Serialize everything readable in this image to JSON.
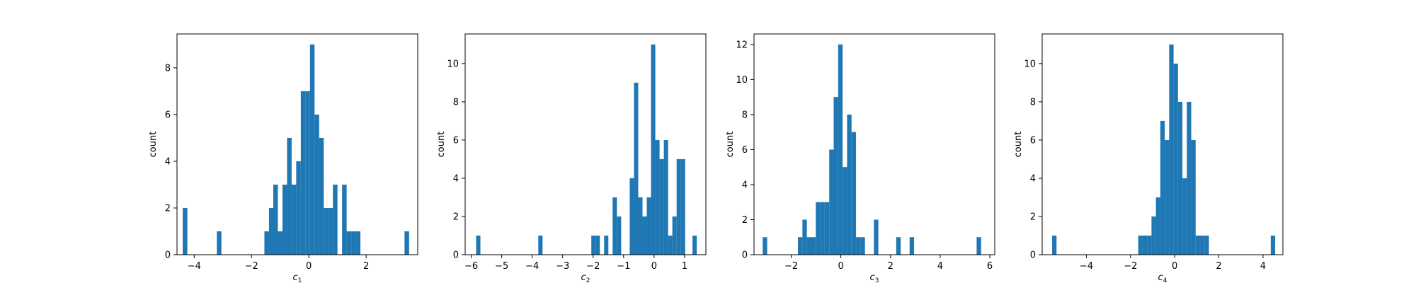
{
  "chart_data": [
    {
      "type": "histogram",
      "xlabel": "c",
      "xlabel_subscript": "1",
      "ylabel": "count",
      "xlim": [
        -4.6,
        3.8
      ],
      "ylim": [
        0,
        9.45
      ],
      "xticks": [
        -4,
        -2,
        0,
        2
      ],
      "yticks": [
        0,
        2,
        4,
        6,
        8
      ],
      "grid": false,
      "color": "#1f77b4",
      "bins": [
        {
          "x0": -4.4,
          "x1": -4.24,
          "count": 2
        },
        {
          "x0": -3.21,
          "x1": -3.05,
          "count": 1
        },
        {
          "x0": -1.55,
          "x1": -1.39,
          "count": 1
        },
        {
          "x0": -1.39,
          "x1": -1.24,
          "count": 2
        },
        {
          "x0": -1.24,
          "x1": -1.08,
          "count": 3
        },
        {
          "x0": -1.08,
          "x1": -0.92,
          "count": 1
        },
        {
          "x0": -0.92,
          "x1": -0.76,
          "count": 3
        },
        {
          "x0": -0.76,
          "x1": -0.6,
          "count": 5
        },
        {
          "x0": -0.6,
          "x1": -0.44,
          "count": 3
        },
        {
          "x0": -0.44,
          "x1": -0.28,
          "count": 4
        },
        {
          "x0": -0.28,
          "x1": -0.12,
          "count": 7
        },
        {
          "x0": -0.12,
          "x1": 0.04,
          "count": 7
        },
        {
          "x0": 0.04,
          "x1": 0.2,
          "count": 9
        },
        {
          "x0": 0.2,
          "x1": 0.36,
          "count": 6
        },
        {
          "x0": 0.36,
          "x1": 0.52,
          "count": 5
        },
        {
          "x0": 0.52,
          "x1": 0.68,
          "count": 2
        },
        {
          "x0": 0.68,
          "x1": 0.84,
          "count": 2
        },
        {
          "x0": 0.84,
          "x1": 1.0,
          "count": 3
        },
        {
          "x0": 1.16,
          "x1": 1.32,
          "count": 3
        },
        {
          "x0": 1.32,
          "x1": 1.48,
          "count": 1
        },
        {
          "x0": 1.48,
          "x1": 1.64,
          "count": 1
        },
        {
          "x0": 1.64,
          "x1": 1.8,
          "count": 1
        },
        {
          "x0": 3.34,
          "x1": 3.5,
          "count": 1
        }
      ]
    },
    {
      "type": "histogram",
      "xlabel": "c",
      "xlabel_subscript": "2",
      "ylabel": "count",
      "xlim": [
        -6.2,
        1.7
      ],
      "ylim": [
        0,
        11.55
      ],
      "xticks": [
        -6,
        -5,
        -4,
        -3,
        -2,
        -1,
        0,
        1
      ],
      "yticks": [
        0,
        2,
        4,
        6,
        8,
        10
      ],
      "grid": false,
      "color": "#1f77b4",
      "bins": [
        {
          "x0": -5.84,
          "x1": -5.7,
          "count": 1
        },
        {
          "x0": -3.8,
          "x1": -3.66,
          "count": 1
        },
        {
          "x0": -2.06,
          "x1": -1.92,
          "count": 1
        },
        {
          "x0": -1.92,
          "x1": -1.78,
          "count": 1
        },
        {
          "x0": -1.64,
          "x1": -1.5,
          "count": 1
        },
        {
          "x0": -1.36,
          "x1": -1.22,
          "count": 3
        },
        {
          "x0": -1.22,
          "x1": -1.08,
          "count": 2
        },
        {
          "x0": -0.8,
          "x1": -0.66,
          "count": 4
        },
        {
          "x0": -0.66,
          "x1": -0.52,
          "count": 9
        },
        {
          "x0": -0.52,
          "x1": -0.38,
          "count": 3
        },
        {
          "x0": -0.38,
          "x1": -0.24,
          "count": 2
        },
        {
          "x0": -0.24,
          "x1": -0.1,
          "count": 3
        },
        {
          "x0": -0.1,
          "x1": 0.04,
          "count": 11
        },
        {
          "x0": 0.04,
          "x1": 0.18,
          "count": 6
        },
        {
          "x0": 0.18,
          "x1": 0.32,
          "count": 5
        },
        {
          "x0": 0.32,
          "x1": 0.46,
          "count": 6
        },
        {
          "x0": 0.46,
          "x1": 0.6,
          "count": 1
        },
        {
          "x0": 0.6,
          "x1": 0.74,
          "count": 2
        },
        {
          "x0": 0.74,
          "x1": 0.88,
          "count": 5
        },
        {
          "x0": 0.88,
          "x1": 1.02,
          "count": 5
        },
        {
          "x0": 1.26,
          "x1": 1.4,
          "count": 1
        }
      ]
    },
    {
      "type": "histogram",
      "xlabel": "c",
      "xlabel_subscript": "3",
      "ylabel": "count",
      "xlim": [
        -3.5,
        6.2
      ],
      "ylim": [
        0,
        12.6
      ],
      "xticks": [
        -2,
        0,
        2,
        4,
        6
      ],
      "yticks": [
        0,
        2,
        4,
        6,
        8,
        10,
        12
      ],
      "grid": false,
      "color": "#1f77b4",
      "bins": [
        {
          "x0": -3.15,
          "x1": -2.97,
          "count": 1
        },
        {
          "x0": -1.73,
          "x1": -1.55,
          "count": 1
        },
        {
          "x0": -1.55,
          "x1": -1.37,
          "count": 2
        },
        {
          "x0": -1.37,
          "x1": -1.19,
          "count": 1
        },
        {
          "x0": -1.19,
          "x1": -1.01,
          "count": 1
        },
        {
          "x0": -1.01,
          "x1": -0.83,
          "count": 3
        },
        {
          "x0": -0.83,
          "x1": -0.65,
          "count": 3
        },
        {
          "x0": -0.65,
          "x1": -0.47,
          "count": 3
        },
        {
          "x0": -0.47,
          "x1": -0.29,
          "count": 6
        },
        {
          "x0": -0.29,
          "x1": -0.11,
          "count": 9
        },
        {
          "x0": -0.11,
          "x1": 0.07,
          "count": 12
        },
        {
          "x0": 0.07,
          "x1": 0.25,
          "count": 5
        },
        {
          "x0": 0.25,
          "x1": 0.43,
          "count": 8
        },
        {
          "x0": 0.43,
          "x1": 0.61,
          "count": 7
        },
        {
          "x0": 0.61,
          "x1": 0.79,
          "count": 1
        },
        {
          "x0": 0.79,
          "x1": 0.97,
          "count": 1
        },
        {
          "x0": 1.33,
          "x1": 1.51,
          "count": 2
        },
        {
          "x0": 2.23,
          "x1": 2.41,
          "count": 1
        },
        {
          "x0": 2.77,
          "x1": 2.95,
          "count": 1
        },
        {
          "x0": 5.47,
          "x1": 5.65,
          "count": 1
        }
      ]
    },
    {
      "type": "histogram",
      "xlabel": "c",
      "xlabel_subscript": "4",
      "ylabel": "count",
      "xlim": [
        -6.0,
        4.9
      ],
      "ylim": [
        0,
        11.55
      ],
      "xticks": [
        -4,
        -2,
        0,
        2,
        4
      ],
      "yticks": [
        0,
        2,
        4,
        6,
        8,
        10
      ],
      "grid": false,
      "color": "#1f77b4",
      "bins": [
        {
          "x0": -5.55,
          "x1": -5.35,
          "count": 1
        },
        {
          "x0": -1.65,
          "x1": -1.45,
          "count": 1
        },
        {
          "x0": -1.45,
          "x1": -1.25,
          "count": 1
        },
        {
          "x0": -1.25,
          "x1": -1.05,
          "count": 1
        },
        {
          "x0": -1.05,
          "x1": -0.85,
          "count": 2
        },
        {
          "x0": -0.85,
          "x1": -0.65,
          "count": 3
        },
        {
          "x0": -0.65,
          "x1": -0.45,
          "count": 7
        },
        {
          "x0": -0.45,
          "x1": -0.25,
          "count": 6
        },
        {
          "x0": -0.25,
          "x1": -0.05,
          "count": 11
        },
        {
          "x0": -0.05,
          "x1": 0.15,
          "count": 10
        },
        {
          "x0": 0.15,
          "x1": 0.35,
          "count": 8
        },
        {
          "x0": 0.35,
          "x1": 0.55,
          "count": 4
        },
        {
          "x0": 0.55,
          "x1": 0.75,
          "count": 8
        },
        {
          "x0": 0.75,
          "x1": 0.95,
          "count": 6
        },
        {
          "x0": 0.95,
          "x1": 1.15,
          "count": 1
        },
        {
          "x0": 1.15,
          "x1": 1.35,
          "count": 1
        },
        {
          "x0": 1.35,
          "x1": 1.55,
          "count": 1
        },
        {
          "x0": 4.35,
          "x1": 4.55,
          "count": 1
        }
      ]
    }
  ]
}
